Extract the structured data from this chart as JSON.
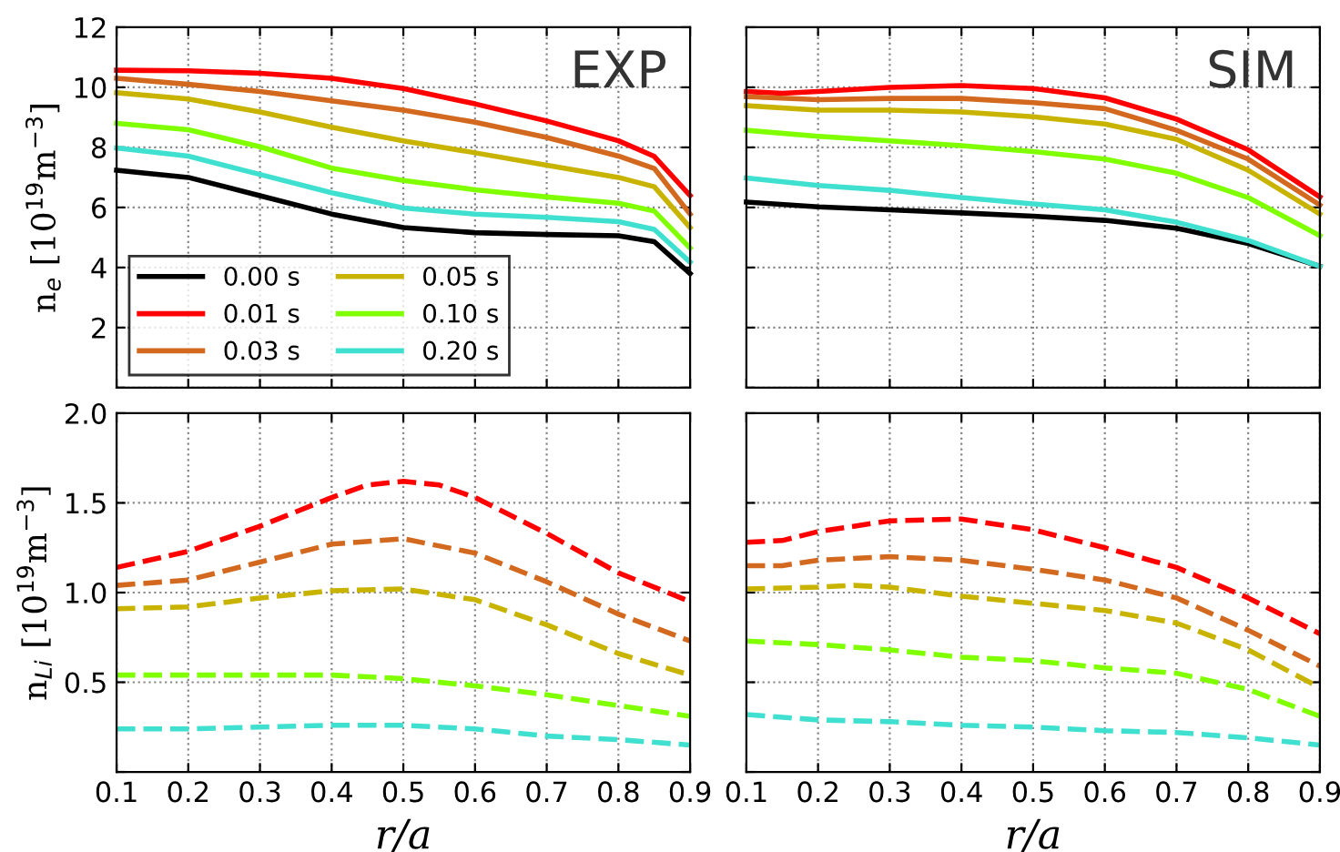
{
  "chart_data": [
    {
      "type": "line",
      "annotations": [
        "EXP"
      ],
      "ylabel": "n$_{e}$ [10$^{19}$m$^{−3}$]",
      "xlim": [
        0.1,
        0.9
      ],
      "ylim": [
        0,
        12
      ],
      "xticks": [
        {
          "value": 0.1,
          "label": null
        },
        {
          "value": 0.2,
          "label": null
        },
        {
          "value": 0.3,
          "label": null
        },
        {
          "value": 0.4,
          "label": null
        },
        {
          "value": 0.5,
          "label": null
        },
        {
          "value": 0.6,
          "label": null
        },
        {
          "value": 0.7,
          "label": null
        },
        {
          "value": 0.8,
          "label": null
        },
        {
          "value": 0.9,
          "label": null
        }
      ],
      "yticks": [
        {
          "value": 0,
          "label": null
        },
        2,
        4,
        6,
        8,
        10,
        12
      ],
      "tick_labels": "y",
      "grid": true,
      "legend": "bottom left",
      "line_style": "solid",
      "series": [
        {
          "name": "0.00 s",
          "color": "#000000",
          "x": [
            0.1,
            0.2,
            0.3,
            0.4,
            0.5,
            0.6,
            0.7,
            0.8,
            0.85,
            0.9
          ],
          "values": [
            7.24,
            7.0,
            6.39,
            5.78,
            5.33,
            5.16,
            5.1,
            5.06,
            4.86,
            3.8
          ]
        },
        {
          "name": "0.01 s",
          "color": "#ff0000",
          "x": [
            0.1,
            0.2,
            0.3,
            0.4,
            0.5,
            0.6,
            0.7,
            0.8,
            0.85,
            0.9
          ],
          "values": [
            10.57,
            10.55,
            10.47,
            10.3,
            9.96,
            9.45,
            8.88,
            8.22,
            7.7,
            6.4
          ]
        },
        {
          "name": "0.03 s",
          "color": "#d2691e",
          "x": [
            0.1,
            0.2,
            0.3,
            0.4,
            0.5,
            0.6,
            0.7,
            0.8,
            0.85,
            0.9
          ],
          "values": [
            10.3,
            10.1,
            9.86,
            9.55,
            9.24,
            8.84,
            8.33,
            7.71,
            7.3,
            5.78
          ]
        },
        {
          "name": "0.05 s",
          "color": "#c8b400",
          "x": [
            0.1,
            0.2,
            0.3,
            0.4,
            0.5,
            0.6,
            0.7,
            0.8,
            0.85,
            0.9
          ],
          "values": [
            9.82,
            9.61,
            9.18,
            8.67,
            8.22,
            7.82,
            7.41,
            7.0,
            6.69,
            5.33
          ]
        },
        {
          "name": "0.10 s",
          "color": "#7fff00",
          "x": [
            0.1,
            0.2,
            0.3,
            0.4,
            0.5,
            0.6,
            0.7,
            0.8,
            0.85,
            0.9
          ],
          "values": [
            8.8,
            8.59,
            8.02,
            7.31,
            6.9,
            6.59,
            6.35,
            6.14,
            5.88,
            4.65
          ]
        },
        {
          "name": "0.20 s",
          "color": "#40e0d0",
          "x": [
            0.1,
            0.2,
            0.3,
            0.4,
            0.5,
            0.6,
            0.7,
            0.8,
            0.85,
            0.9
          ],
          "values": [
            7.98,
            7.71,
            7.1,
            6.49,
            5.98,
            5.78,
            5.67,
            5.53,
            5.27,
            4.18
          ]
        }
      ]
    },
    {
      "type": "line",
      "annotations": [
        "SIM"
      ],
      "xlim": [
        0.1,
        0.9
      ],
      "ylim": [
        0,
        12
      ],
      "xticks": [
        {
          "value": 0.1,
          "label": null
        },
        {
          "value": 0.2,
          "label": null
        },
        {
          "value": 0.3,
          "label": null
        },
        {
          "value": 0.4,
          "label": null
        },
        {
          "value": 0.5,
          "label": null
        },
        {
          "value": 0.6,
          "label": null
        },
        {
          "value": 0.7,
          "label": null
        },
        {
          "value": 0.8,
          "label": null
        },
        {
          "value": 0.9,
          "label": null
        }
      ],
      "yticks": [
        {
          "value": 0,
          "label": null
        },
        {
          "value": 2,
          "label": null
        },
        {
          "value": 4,
          "label": null
        },
        {
          "value": 6,
          "label": null
        },
        {
          "value": 8,
          "label": null
        },
        {
          "value": 10,
          "label": null
        },
        {
          "value": 12,
          "label": null
        }
      ],
      "tick_labels": false,
      "grid": true,
      "line_style": "solid",
      "series": [
        {
          "color": "#000000",
          "x": [
            0.1,
            0.2,
            0.3,
            0.4,
            0.5,
            0.6,
            0.7,
            0.8,
            0.9
          ],
          "values": [
            6.18,
            6.02,
            5.92,
            5.82,
            5.71,
            5.57,
            5.31,
            4.8,
            4.04
          ]
        },
        {
          "color": "#ff0000",
          "x": [
            0.1,
            0.15,
            0.2,
            0.3,
            0.4,
            0.5,
            0.6,
            0.7,
            0.8,
            0.9
          ],
          "values": [
            9.86,
            9.8,
            9.86,
            10.0,
            10.06,
            9.96,
            9.65,
            8.94,
            7.92,
            6.35
          ]
        },
        {
          "color": "#d2691e",
          "x": [
            0.1,
            0.2,
            0.3,
            0.4,
            0.5,
            0.6,
            0.7,
            0.8,
            0.9
          ],
          "values": [
            9.69,
            9.59,
            9.63,
            9.63,
            9.49,
            9.29,
            8.57,
            7.61,
            6.08
          ]
        },
        {
          "color": "#c8b400",
          "x": [
            0.1,
            0.2,
            0.3,
            0.4,
            0.5,
            0.6,
            0.7,
            0.8,
            0.9
          ],
          "values": [
            9.39,
            9.24,
            9.24,
            9.18,
            9.02,
            8.78,
            8.27,
            7.24,
            5.78
          ]
        },
        {
          "color": "#7fff00",
          "x": [
            0.1,
            0.2,
            0.3,
            0.4,
            0.5,
            0.6,
            0.7,
            0.8,
            0.9
          ],
          "values": [
            8.57,
            8.37,
            8.22,
            8.06,
            7.86,
            7.61,
            7.14,
            6.33,
            5.06
          ]
        },
        {
          "color": "#40e0d0",
          "x": [
            0.1,
            0.2,
            0.3,
            0.4,
            0.5,
            0.6,
            0.7,
            0.8,
            0.9
          ],
          "values": [
            6.98,
            6.73,
            6.57,
            6.33,
            6.12,
            5.92,
            5.51,
            4.9,
            4.04
          ]
        }
      ]
    },
    {
      "type": "line",
      "xlabel": "r/a",
      "ylabel": "n$_{Li}$ [10$^{19}$m$^{−3}$]",
      "xlim": [
        0.1,
        0.9
      ],
      "ylim": [
        0,
        2.0
      ],
      "xticks": [
        0.1,
        0.2,
        0.3,
        0.4,
        0.5,
        0.6,
        0.7,
        0.8,
        0.9
      ],
      "yticks": [
        {
          "value": 0,
          "label": null
        },
        0.5,
        {
          "value": 1.0,
          "label": "1.0"
        },
        1.5,
        {
          "value": 2.0,
          "label": "2.0"
        }
      ],
      "grid": true,
      "line_style": "dashed",
      "series": [
        {
          "color": "#ff0000",
          "x": [
            0.1,
            0.2,
            0.3,
            0.4,
            0.45,
            0.5,
            0.55,
            0.6,
            0.7,
            0.8,
            0.9
          ],
          "values": [
            1.14,
            1.23,
            1.37,
            1.53,
            1.6,
            1.62,
            1.6,
            1.53,
            1.33,
            1.11,
            0.95
          ]
        },
        {
          "color": "#d2691e",
          "x": [
            0.1,
            0.2,
            0.3,
            0.4,
            0.5,
            0.6,
            0.7,
            0.8,
            0.9
          ],
          "values": [
            1.04,
            1.07,
            1.17,
            1.27,
            1.3,
            1.22,
            1.06,
            0.88,
            0.73
          ]
        },
        {
          "color": "#c8b400",
          "x": [
            0.1,
            0.2,
            0.3,
            0.4,
            0.5,
            0.6,
            0.7,
            0.8,
            0.9
          ],
          "values": [
            0.91,
            0.92,
            0.97,
            1.01,
            1.02,
            0.96,
            0.82,
            0.66,
            0.54
          ]
        },
        {
          "color": "#7fff00",
          "x": [
            0.1,
            0.2,
            0.3,
            0.4,
            0.5,
            0.6,
            0.7,
            0.8,
            0.9
          ],
          "values": [
            0.54,
            0.54,
            0.54,
            0.54,
            0.52,
            0.48,
            0.43,
            0.37,
            0.31
          ]
        },
        {
          "color": "#40e0d0",
          "x": [
            0.1,
            0.2,
            0.3,
            0.4,
            0.5,
            0.6,
            0.7,
            0.8,
            0.9
          ],
          "values": [
            0.24,
            0.24,
            0.25,
            0.26,
            0.26,
            0.24,
            0.2,
            0.18,
            0.15
          ]
        }
      ]
    },
    {
      "type": "line",
      "xlabel": "r/a",
      "xlim": [
        0.1,
        0.9
      ],
      "ylim": [
        0,
        2.0
      ],
      "xticks": [
        0.1,
        0.2,
        0.3,
        0.4,
        0.5,
        0.6,
        0.7,
        0.8,
        0.9
      ],
      "yticks": [
        {
          "value": 0,
          "label": null
        },
        {
          "value": 0.5,
          "label": null
        },
        {
          "value": 1.0,
          "label": null
        },
        {
          "value": 1.5,
          "label": null
        },
        {
          "value": 2.0,
          "label": null
        }
      ],
      "tick_labels": "x",
      "grid": true,
      "line_style": "dashed",
      "series": [
        {
          "color": "#ff0000",
          "x": [
            0.1,
            0.15,
            0.2,
            0.3,
            0.4,
            0.5,
            0.6,
            0.7,
            0.8,
            0.9
          ],
          "values": [
            1.28,
            1.29,
            1.34,
            1.4,
            1.41,
            1.35,
            1.25,
            1.14,
            0.97,
            0.77
          ]
        },
        {
          "color": "#d2691e",
          "x": [
            0.1,
            0.15,
            0.2,
            0.3,
            0.4,
            0.5,
            0.6,
            0.7,
            0.8,
            0.9
          ],
          "values": [
            1.15,
            1.15,
            1.18,
            1.2,
            1.18,
            1.13,
            1.07,
            0.97,
            0.79,
            0.59
          ]
        },
        {
          "color": "#c8b400",
          "x": [
            0.1,
            0.2,
            0.25,
            0.3,
            0.4,
            0.5,
            0.6,
            0.7,
            0.8,
            0.9
          ],
          "values": [
            1.02,
            1.03,
            1.04,
            1.03,
            0.98,
            0.94,
            0.9,
            0.83,
            0.68,
            0.47
          ]
        },
        {
          "color": "#7fff00",
          "x": [
            0.1,
            0.2,
            0.3,
            0.4,
            0.5,
            0.6,
            0.7,
            0.8,
            0.9
          ],
          "values": [
            0.73,
            0.71,
            0.68,
            0.64,
            0.62,
            0.58,
            0.55,
            0.46,
            0.31
          ]
        },
        {
          "color": "#40e0d0",
          "x": [
            0.1,
            0.2,
            0.3,
            0.4,
            0.5,
            0.6,
            0.7,
            0.8,
            0.9
          ],
          "values": [
            0.32,
            0.29,
            0.28,
            0.26,
            0.25,
            0.23,
            0.22,
            0.19,
            0.15
          ]
        }
      ]
    }
  ]
}
